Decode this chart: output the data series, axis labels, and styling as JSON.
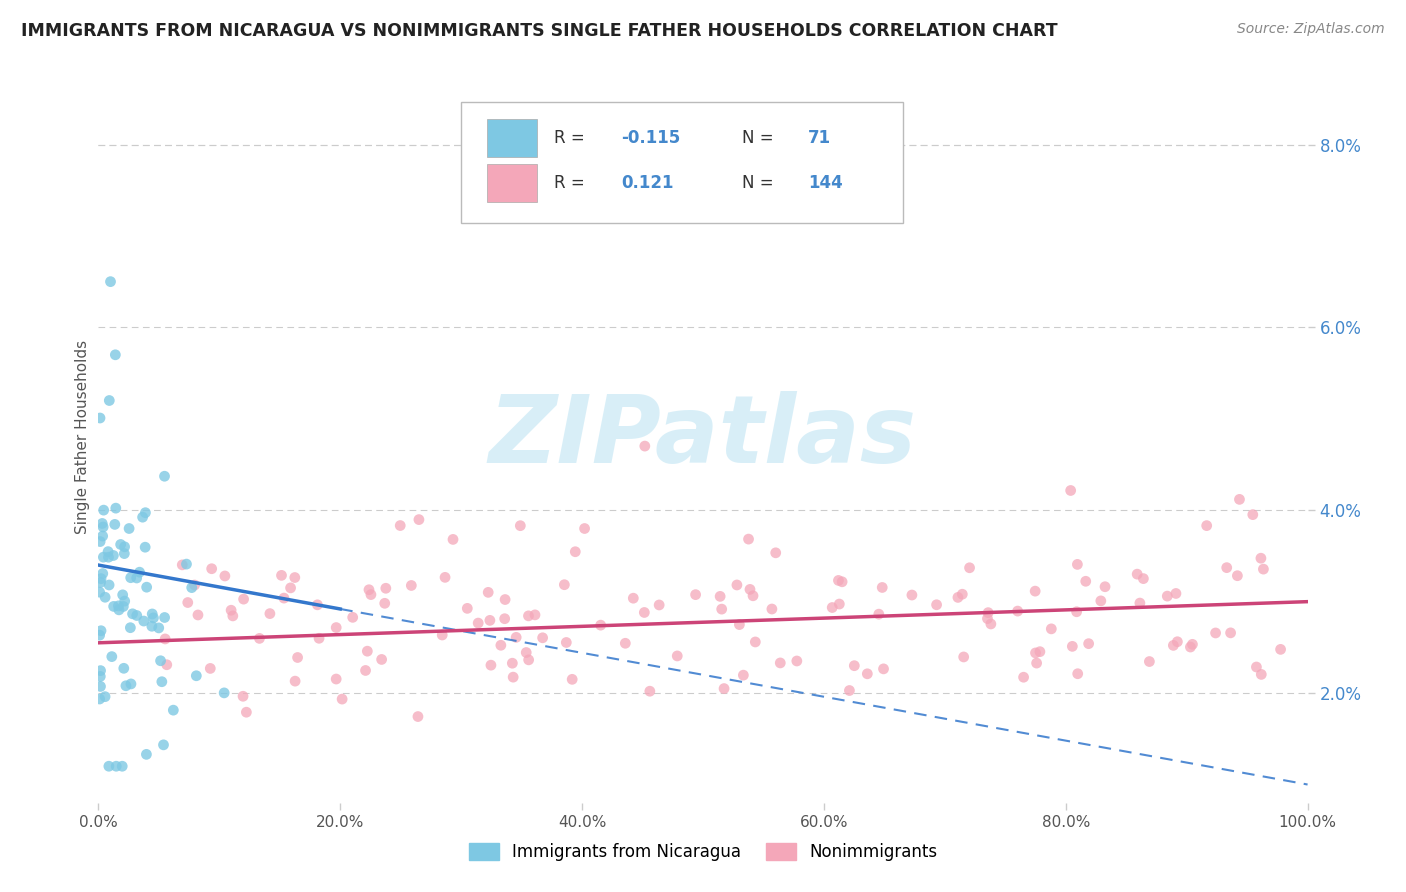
{
  "title": "IMMIGRANTS FROM NICARAGUA VS NONIMMIGRANTS SINGLE FATHER HOUSEHOLDS CORRELATION CHART",
  "source": "Source: ZipAtlas.com",
  "ylabel": "Single Father Households",
  "xlim": [
    0.0,
    1.0
  ],
  "ylim": [
    0.008,
    0.088
  ],
  "ytick_vals": [
    0.02,
    0.04,
    0.06,
    0.08
  ],
  "ytick_labels": [
    "2.0%",
    "4.0%",
    "6.0%",
    "8.0%"
  ],
  "xtick_vals": [
    0.0,
    0.2,
    0.4,
    0.6,
    0.8,
    1.0
  ],
  "xtick_labels": [
    "0.0%",
    "20.0%",
    "40.0%",
    "60.0%",
    "80.0%",
    "100.0%"
  ],
  "r_nicaragua": -0.115,
  "n_nicaragua": 71,
  "r_nonimmigrant": 0.121,
  "n_nonimmigrant": 144,
  "color_nicaragua": "#7ec8e3",
  "color_nonimmigrant": "#f4a7b9",
  "color_trendline_blue": "#3377cc",
  "color_trendline_pink": "#cc4477",
  "legend_label_nicaragua": "Immigrants from Nicaragua",
  "legend_label_nonimmigrant": "Nonimmigrants",
  "watermark": "ZIPatlas",
  "watermark_color": "#c8e8f5",
  "grid_color": "#cccccc",
  "title_color": "#222222",
  "source_color": "#888888",
  "tick_color": "#555555",
  "ytick_color": "#4488cc"
}
